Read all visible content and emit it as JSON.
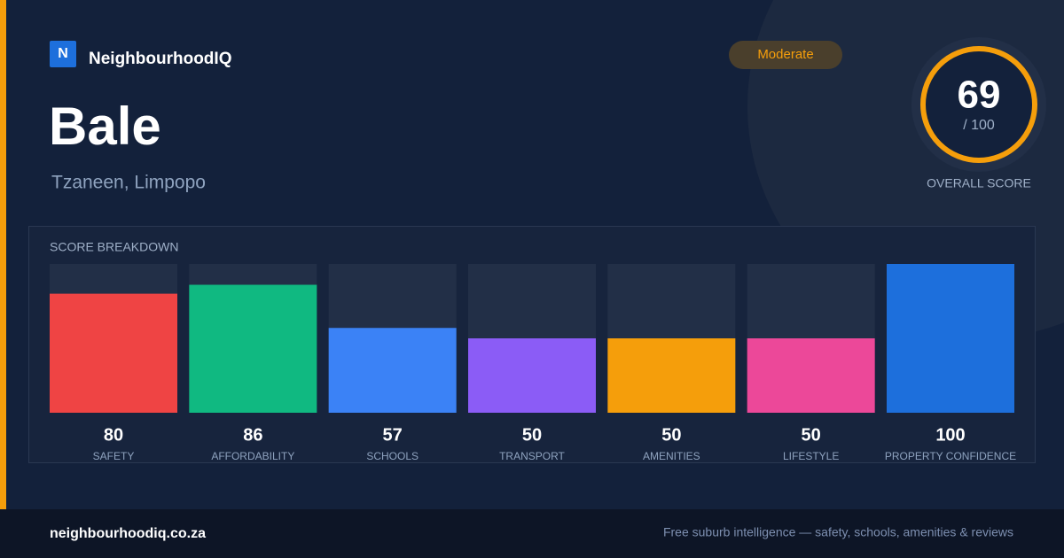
{
  "header": {
    "logo_letter": "N",
    "brand": "NeighbourhoodIQ",
    "badge": "Moderate",
    "title": "Bale",
    "subtitle": "Tzaneen, Limpopo"
  },
  "score": {
    "value": "69",
    "max_label": "/ 100",
    "label": "OVERALL SCORE"
  },
  "chart_data": {
    "type": "bar",
    "title": "SCORE BREAKDOWN",
    "categories": [
      "SAFETY",
      "AFFORDABILITY",
      "SCHOOLS",
      "TRANSPORT",
      "AMENITIES",
      "LIFESTYLE",
      "PROPERTY CONFIDENCE"
    ],
    "values": [
      80,
      86,
      57,
      50,
      50,
      50,
      100
    ],
    "colors": [
      "#ef4444",
      "#10b981",
      "#3b82f6",
      "#8b5cf6",
      "#f59e0b",
      "#ec4899",
      "#1d6fdc"
    ],
    "ylim": [
      0,
      100
    ]
  },
  "footer": {
    "site": "neighbourhoodiq.co.za",
    "tagline": "Free suburb intelligence — safety, schools, amenities & reviews"
  }
}
